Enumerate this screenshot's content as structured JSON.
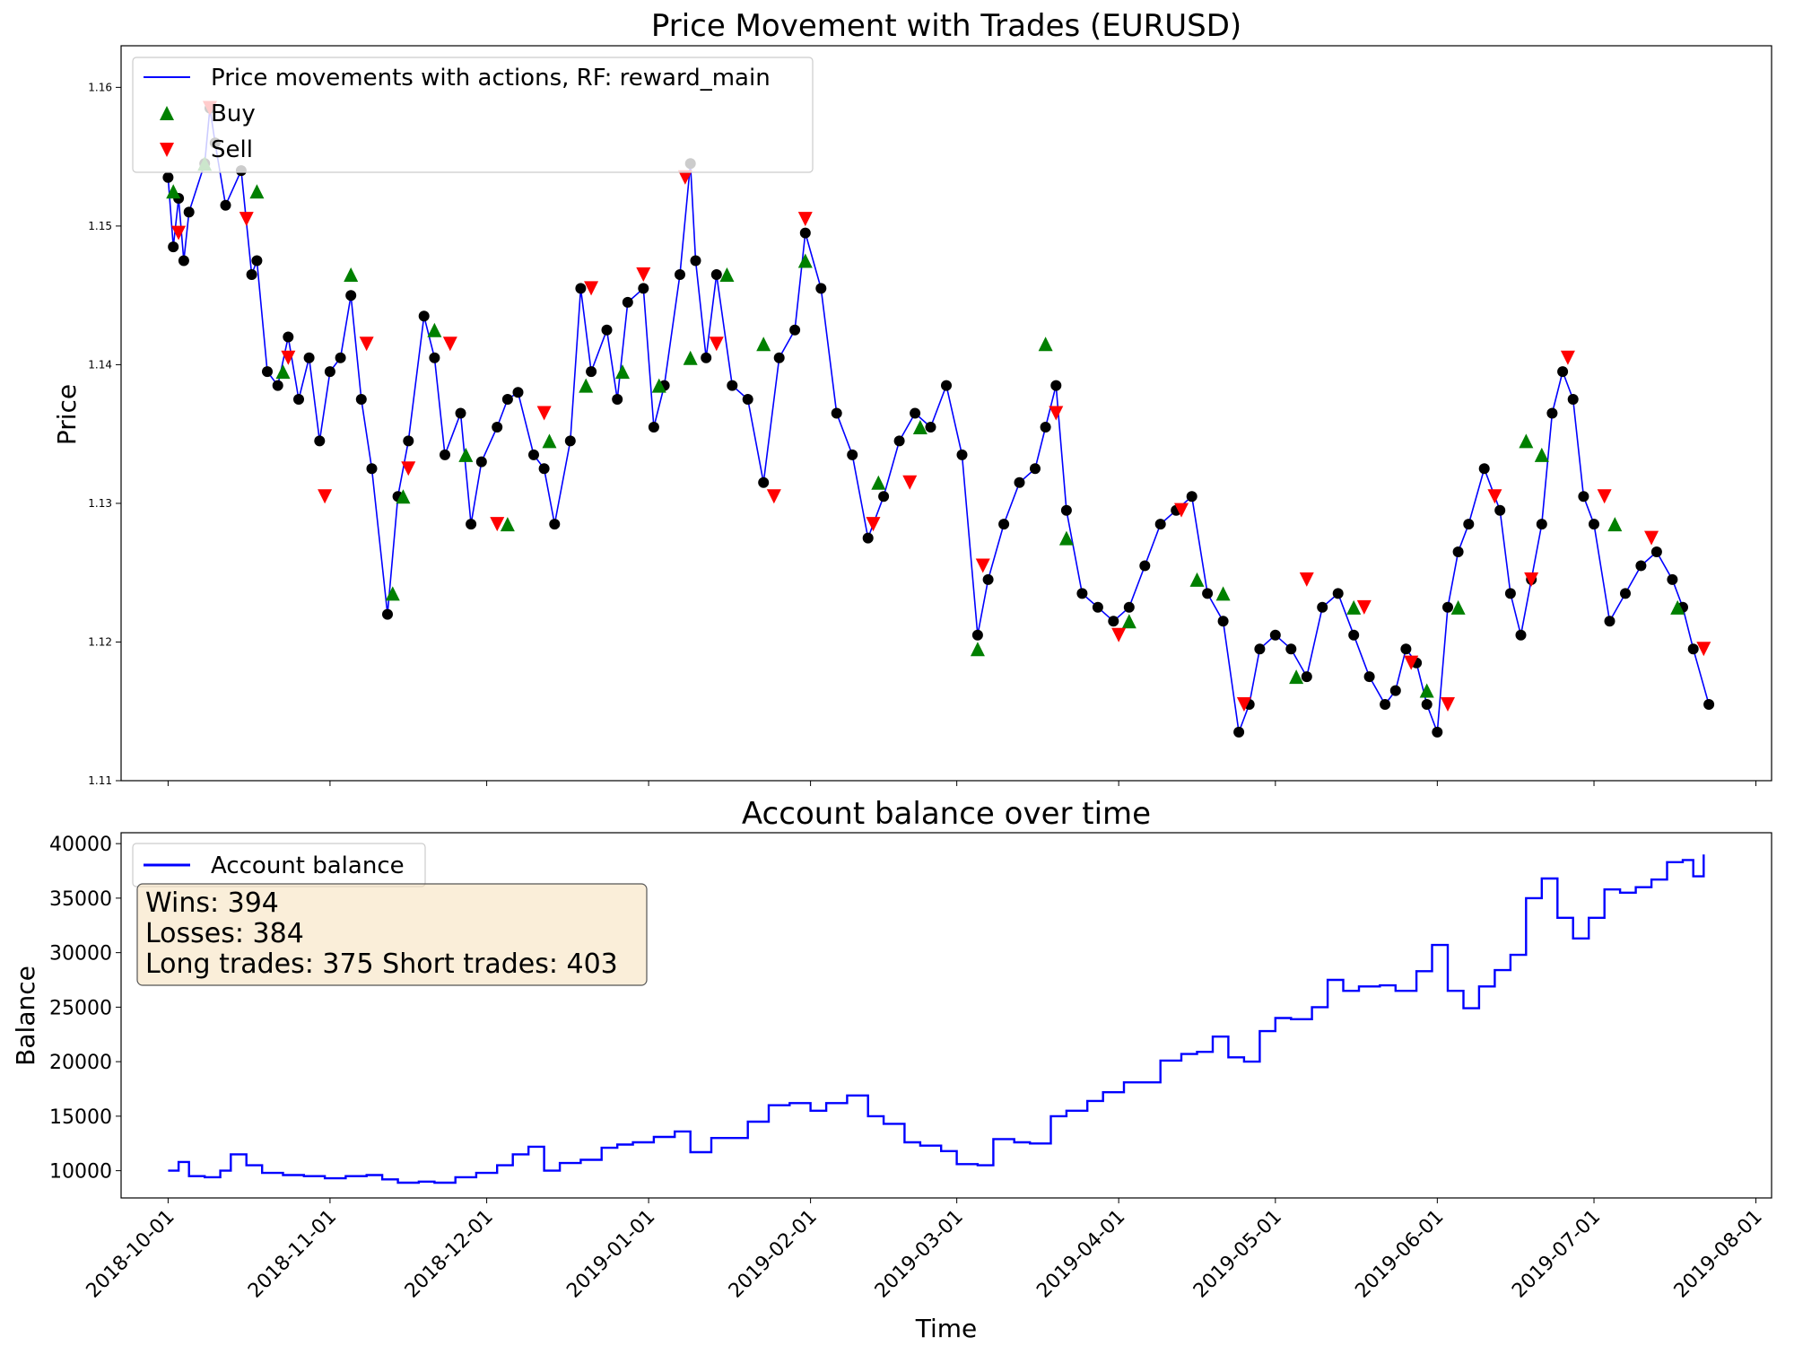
{
  "chart_data": [
    {
      "type": "line",
      "title": "Price Movement with Trades (EURUSD)",
      "xlabel": "",
      "ylabel": "Price",
      "ylim": [
        1.11,
        1.163
      ],
      "xlim": [
        "2018-09-22",
        "2019-08-04"
      ],
      "y_ticks": [
        1.11,
        1.12,
        1.13,
        1.14,
        1.15,
        1.16
      ],
      "y_tick_labels": [
        "1.11",
        "1.12",
        "1.13",
        "1.14",
        "1.15",
        "1.16"
      ],
      "legend_placement": "top-left",
      "grid": false,
      "series": [
        {
          "name": "Price movements with actions, RF: reward_main",
          "color": "#0000ff",
          "x": [
            "2018-10-01",
            "2018-10-02",
            "2018-10-03",
            "2018-10-04",
            "2018-10-05",
            "2018-10-08",
            "2018-10-09",
            "2018-10-10",
            "2018-10-12",
            "2018-10-15",
            "2018-10-17",
            "2018-10-18",
            "2018-10-20",
            "2018-10-22",
            "2018-10-24",
            "2018-10-26",
            "2018-10-28",
            "2018-10-30",
            "2018-11-01",
            "2018-11-03",
            "2018-11-05",
            "2018-11-07",
            "2018-11-09",
            "2018-11-12",
            "2018-11-14",
            "2018-11-16",
            "2018-11-19",
            "2018-11-21",
            "2018-11-23",
            "2018-11-26",
            "2018-11-28",
            "2018-11-30",
            "2018-12-03",
            "2018-12-05",
            "2018-12-07",
            "2018-12-10",
            "2018-12-12",
            "2018-12-14",
            "2018-12-17",
            "2018-12-19",
            "2018-12-21",
            "2018-12-24",
            "2018-12-26",
            "2018-12-28",
            "2018-12-31",
            "2019-01-02",
            "2019-01-04",
            "2019-01-07",
            "2019-01-09",
            "2019-01-10",
            "2019-01-12",
            "2019-01-14",
            "2019-01-17",
            "2019-01-20",
            "2019-01-23",
            "2019-01-26",
            "2019-01-29",
            "2019-01-31",
            "2019-02-03",
            "2019-02-06",
            "2019-02-09",
            "2019-02-12",
            "2019-02-15",
            "2019-02-18",
            "2019-02-21",
            "2019-02-24",
            "2019-02-27",
            "2019-03-02",
            "2019-03-05",
            "2019-03-07",
            "2019-03-10",
            "2019-03-13",
            "2019-03-16",
            "2019-03-18",
            "2019-03-20",
            "2019-03-22",
            "2019-03-25",
            "2019-03-28",
            "2019-03-31",
            "2019-04-03",
            "2019-04-06",
            "2019-04-09",
            "2019-04-12",
            "2019-04-15",
            "2019-04-18",
            "2019-04-21",
            "2019-04-24",
            "2019-04-26",
            "2019-04-28",
            "2019-05-01",
            "2019-05-04",
            "2019-05-07",
            "2019-05-10",
            "2019-05-13",
            "2019-05-16",
            "2019-05-19",
            "2019-05-22",
            "2019-05-24",
            "2019-05-26",
            "2019-05-28",
            "2019-05-30",
            "2019-06-01",
            "2019-06-03",
            "2019-06-05",
            "2019-06-07",
            "2019-06-10",
            "2019-06-13",
            "2019-06-15",
            "2019-06-17",
            "2019-06-19",
            "2019-06-21",
            "2019-06-23",
            "2019-06-25",
            "2019-06-27",
            "2019-06-29",
            "2019-07-01",
            "2019-07-04",
            "2019-07-07",
            "2019-07-10",
            "2019-07-13",
            "2019-07-16",
            "2019-07-18",
            "2019-07-20",
            "2019-07-23"
          ],
          "y": [
            1.1535,
            1.1485,
            1.152,
            1.1475,
            1.151,
            1.1545,
            1.1585,
            1.156,
            1.1515,
            1.154,
            1.1465,
            1.1475,
            1.1395,
            1.1385,
            1.142,
            1.1375,
            1.1405,
            1.1345,
            1.1395,
            1.1405,
            1.145,
            1.1375,
            1.1325,
            1.122,
            1.1305,
            1.1345,
            1.1435,
            1.1405,
            1.1335,
            1.1365,
            1.1285,
            1.133,
            1.1355,
            1.1375,
            1.138,
            1.1335,
            1.1325,
            1.1285,
            1.1345,
            1.1455,
            1.1395,
            1.1425,
            1.1375,
            1.1445,
            1.1455,
            1.1355,
            1.1385,
            1.1465,
            1.1545,
            1.1475,
            1.1405,
            1.1465,
            1.1385,
            1.1375,
            1.1315,
            1.1405,
            1.1425,
            1.1495,
            1.1455,
            1.1365,
            1.1335,
            1.1275,
            1.1305,
            1.1345,
            1.1365,
            1.1355,
            1.1385,
            1.1335,
            1.1205,
            1.1245,
            1.1285,
            1.1315,
            1.1325,
            1.1355,
            1.1385,
            1.1295,
            1.1235,
            1.1225,
            1.1215,
            1.1225,
            1.1255,
            1.1285,
            1.1295,
            1.1305,
            1.1235,
            1.1215,
            1.1135,
            1.1155,
            1.1195,
            1.1205,
            1.1195,
            1.1175,
            1.1225,
            1.1235,
            1.1205,
            1.1175,
            1.1155,
            1.1165,
            1.1195,
            1.1185,
            1.1155,
            1.1135,
            1.1225,
            1.1265,
            1.1285,
            1.1325,
            1.1295,
            1.1235,
            1.1205,
            1.1245,
            1.1285,
            1.1365,
            1.1395,
            1.1375,
            1.1305,
            1.1285,
            1.1215,
            1.1235,
            1.1255,
            1.1265,
            1.1245,
            1.1225,
            1.1195,
            1.1155
          ]
        }
      ],
      "markers": [
        {
          "name": "Buy",
          "shape": "triangle-up",
          "color": "#008000",
          "x": [
            "2018-10-02",
            "2018-10-08",
            "2018-10-18",
            "2018-10-23",
            "2018-11-05",
            "2018-11-13",
            "2018-11-15",
            "2018-11-21",
            "2018-11-27",
            "2018-12-05",
            "2018-12-13",
            "2018-12-20",
            "2018-12-27",
            "2019-01-03",
            "2019-01-09",
            "2019-01-16",
            "2019-01-23",
            "2019-01-31",
            "2019-02-14",
            "2019-02-22",
            "2019-03-05",
            "2019-03-18",
            "2019-03-22",
            "2019-04-03",
            "2019-04-16",
            "2019-04-21",
            "2019-05-05",
            "2019-05-16",
            "2019-05-30",
            "2019-06-05",
            "2019-06-18",
            "2019-06-21",
            "2019-07-05",
            "2019-07-17"
          ],
          "y": [
            1.1525,
            1.1545,
            1.1525,
            1.1395,
            1.1465,
            1.1235,
            1.1305,
            1.1425,
            1.1335,
            1.1285,
            1.1345,
            1.1385,
            1.1395,
            1.1385,
            1.1405,
            1.1465,
            1.1415,
            1.1475,
            1.1315,
            1.1355,
            1.1195,
            1.1415,
            1.1275,
            1.1215,
            1.1245,
            1.1235,
            1.1175,
            1.1225,
            1.1165,
            1.1225,
            1.1345,
            1.1335,
            1.1285,
            1.1225
          ]
        },
        {
          "name": "Sell",
          "shape": "triangle-down",
          "color": "#ff0000",
          "x": [
            "2018-10-03",
            "2018-10-09",
            "2018-10-16",
            "2018-10-24",
            "2018-10-31",
            "2018-11-08",
            "2018-11-16",
            "2018-11-24",
            "2018-12-03",
            "2018-12-12",
            "2018-12-21",
            "2018-12-31",
            "2019-01-08",
            "2019-01-14",
            "2019-01-25",
            "2019-01-31",
            "2019-02-13",
            "2019-02-20",
            "2019-03-06",
            "2019-03-20",
            "2019-04-01",
            "2019-04-13",
            "2019-04-25",
            "2019-05-07",
            "2019-05-18",
            "2019-05-27",
            "2019-06-03",
            "2019-06-12",
            "2019-06-19",
            "2019-06-26",
            "2019-07-03",
            "2019-07-12",
            "2019-07-22"
          ],
          "y": [
            1.1495,
            1.1585,
            1.1505,
            1.1405,
            1.1305,
            1.1415,
            1.1325,
            1.1415,
            1.1285,
            1.1365,
            1.1455,
            1.1465,
            1.1535,
            1.1415,
            1.1305,
            1.1505,
            1.1285,
            1.1315,
            1.1255,
            1.1365,
            1.1205,
            1.1295,
            1.1155,
            1.1245,
            1.1225,
            1.1185,
            1.1155,
            1.1305,
            1.1245,
            1.1405,
            1.1305,
            1.1275,
            1.1195
          ]
        }
      ]
    },
    {
      "type": "line",
      "title": "Account balance over time",
      "xlabel": "Time",
      "ylabel": "Balance",
      "ylim": [
        7500,
        41000
      ],
      "xlim": [
        "2018-09-22",
        "2019-08-04"
      ],
      "y_ticks": [
        10000,
        15000,
        20000,
        25000,
        30000,
        35000,
        40000
      ],
      "y_tick_labels": [
        "10000",
        "15000",
        "20000",
        "25000",
        "30000",
        "35000",
        "40000"
      ],
      "x_ticks": [
        "2018-10-01",
        "2018-11-01",
        "2018-12-01",
        "2019-01-01",
        "2019-02-01",
        "2019-03-01",
        "2019-04-01",
        "2019-05-01",
        "2019-06-01",
        "2019-07-01",
        "2019-08-01"
      ],
      "x_tick_labels": [
        "2018-10-01",
        "2018-11-01",
        "2018-12-01",
        "2019-01-01",
        "2019-02-01",
        "2019-03-01",
        "2019-04-01",
        "2019-05-01",
        "2019-06-01",
        "2019-07-01",
        "2019-08-01"
      ],
      "legend_placement": "top-left",
      "grid": false,
      "series": [
        {
          "name": "Account balance",
          "color": "#0000ff",
          "x": [
            "2018-10-01",
            "2018-10-03",
            "2018-10-05",
            "2018-10-08",
            "2018-10-11",
            "2018-10-13",
            "2018-10-16",
            "2018-10-19",
            "2018-10-23",
            "2018-10-27",
            "2018-10-31",
            "2018-11-04",
            "2018-11-08",
            "2018-11-11",
            "2018-11-14",
            "2018-11-18",
            "2018-11-21",
            "2018-11-25",
            "2018-11-29",
            "2018-12-03",
            "2018-12-06",
            "2018-12-09",
            "2018-12-12",
            "2018-12-15",
            "2018-12-19",
            "2018-12-23",
            "2018-12-26",
            "2018-12-29",
            "2019-01-02",
            "2019-01-06",
            "2019-01-09",
            "2019-01-13",
            "2019-01-17",
            "2019-01-20",
            "2019-01-24",
            "2019-01-28",
            "2019-02-01",
            "2019-02-04",
            "2019-02-08",
            "2019-02-12",
            "2019-02-15",
            "2019-02-19",
            "2019-02-22",
            "2019-02-26",
            "2019-03-01",
            "2019-03-05",
            "2019-03-08",
            "2019-03-12",
            "2019-03-15",
            "2019-03-19",
            "2019-03-22",
            "2019-03-26",
            "2019-03-29",
            "2019-04-02",
            "2019-04-05",
            "2019-04-09",
            "2019-04-13",
            "2019-04-16",
            "2019-04-19",
            "2019-04-22",
            "2019-04-25",
            "2019-04-28",
            "2019-05-01",
            "2019-05-04",
            "2019-05-08",
            "2019-05-11",
            "2019-05-14",
            "2019-05-17",
            "2019-05-21",
            "2019-05-24",
            "2019-05-28",
            "2019-05-31",
            "2019-06-03",
            "2019-06-06",
            "2019-06-09",
            "2019-06-12",
            "2019-06-15",
            "2019-06-18",
            "2019-06-21",
            "2019-06-24",
            "2019-06-27",
            "2019-06-30",
            "2019-07-03",
            "2019-07-06",
            "2019-07-09",
            "2019-07-12",
            "2019-07-15",
            "2019-07-18",
            "2019-07-20",
            "2019-07-22"
          ],
          "y": [
            10000,
            10800,
            9500,
            9400,
            10000,
            11500,
            10500,
            9800,
            9600,
            9500,
            9300,
            9500,
            9600,
            9200,
            8900,
            9000,
            8900,
            9400,
            9800,
            10500,
            11500,
            12200,
            10000,
            10700,
            11000,
            12100,
            12400,
            12600,
            13100,
            13600,
            11700,
            13000,
            13000,
            14500,
            16000,
            16200,
            15500,
            16200,
            16900,
            15000,
            14300,
            12600,
            12300,
            11800,
            10600,
            10500,
            12900,
            12600,
            12500,
            15000,
            15500,
            16400,
            17200,
            18100,
            18100,
            20100,
            20700,
            20900,
            22300,
            20400,
            20000,
            22800,
            24000,
            23900,
            25000,
            27500,
            26500,
            26900,
            27000,
            26500,
            28300,
            30700,
            26500,
            24900,
            26900,
            28400,
            29800,
            35000,
            36800,
            33200,
            31300,
            33200,
            35800,
            35500,
            36000,
            36700,
            38300,
            38500,
            37000,
            39000
          ]
        }
      ],
      "annotation": [
        "Wins: 394",
        "Losses: 384",
        "Long trades: 375 Short trades: 403"
      ]
    }
  ]
}
